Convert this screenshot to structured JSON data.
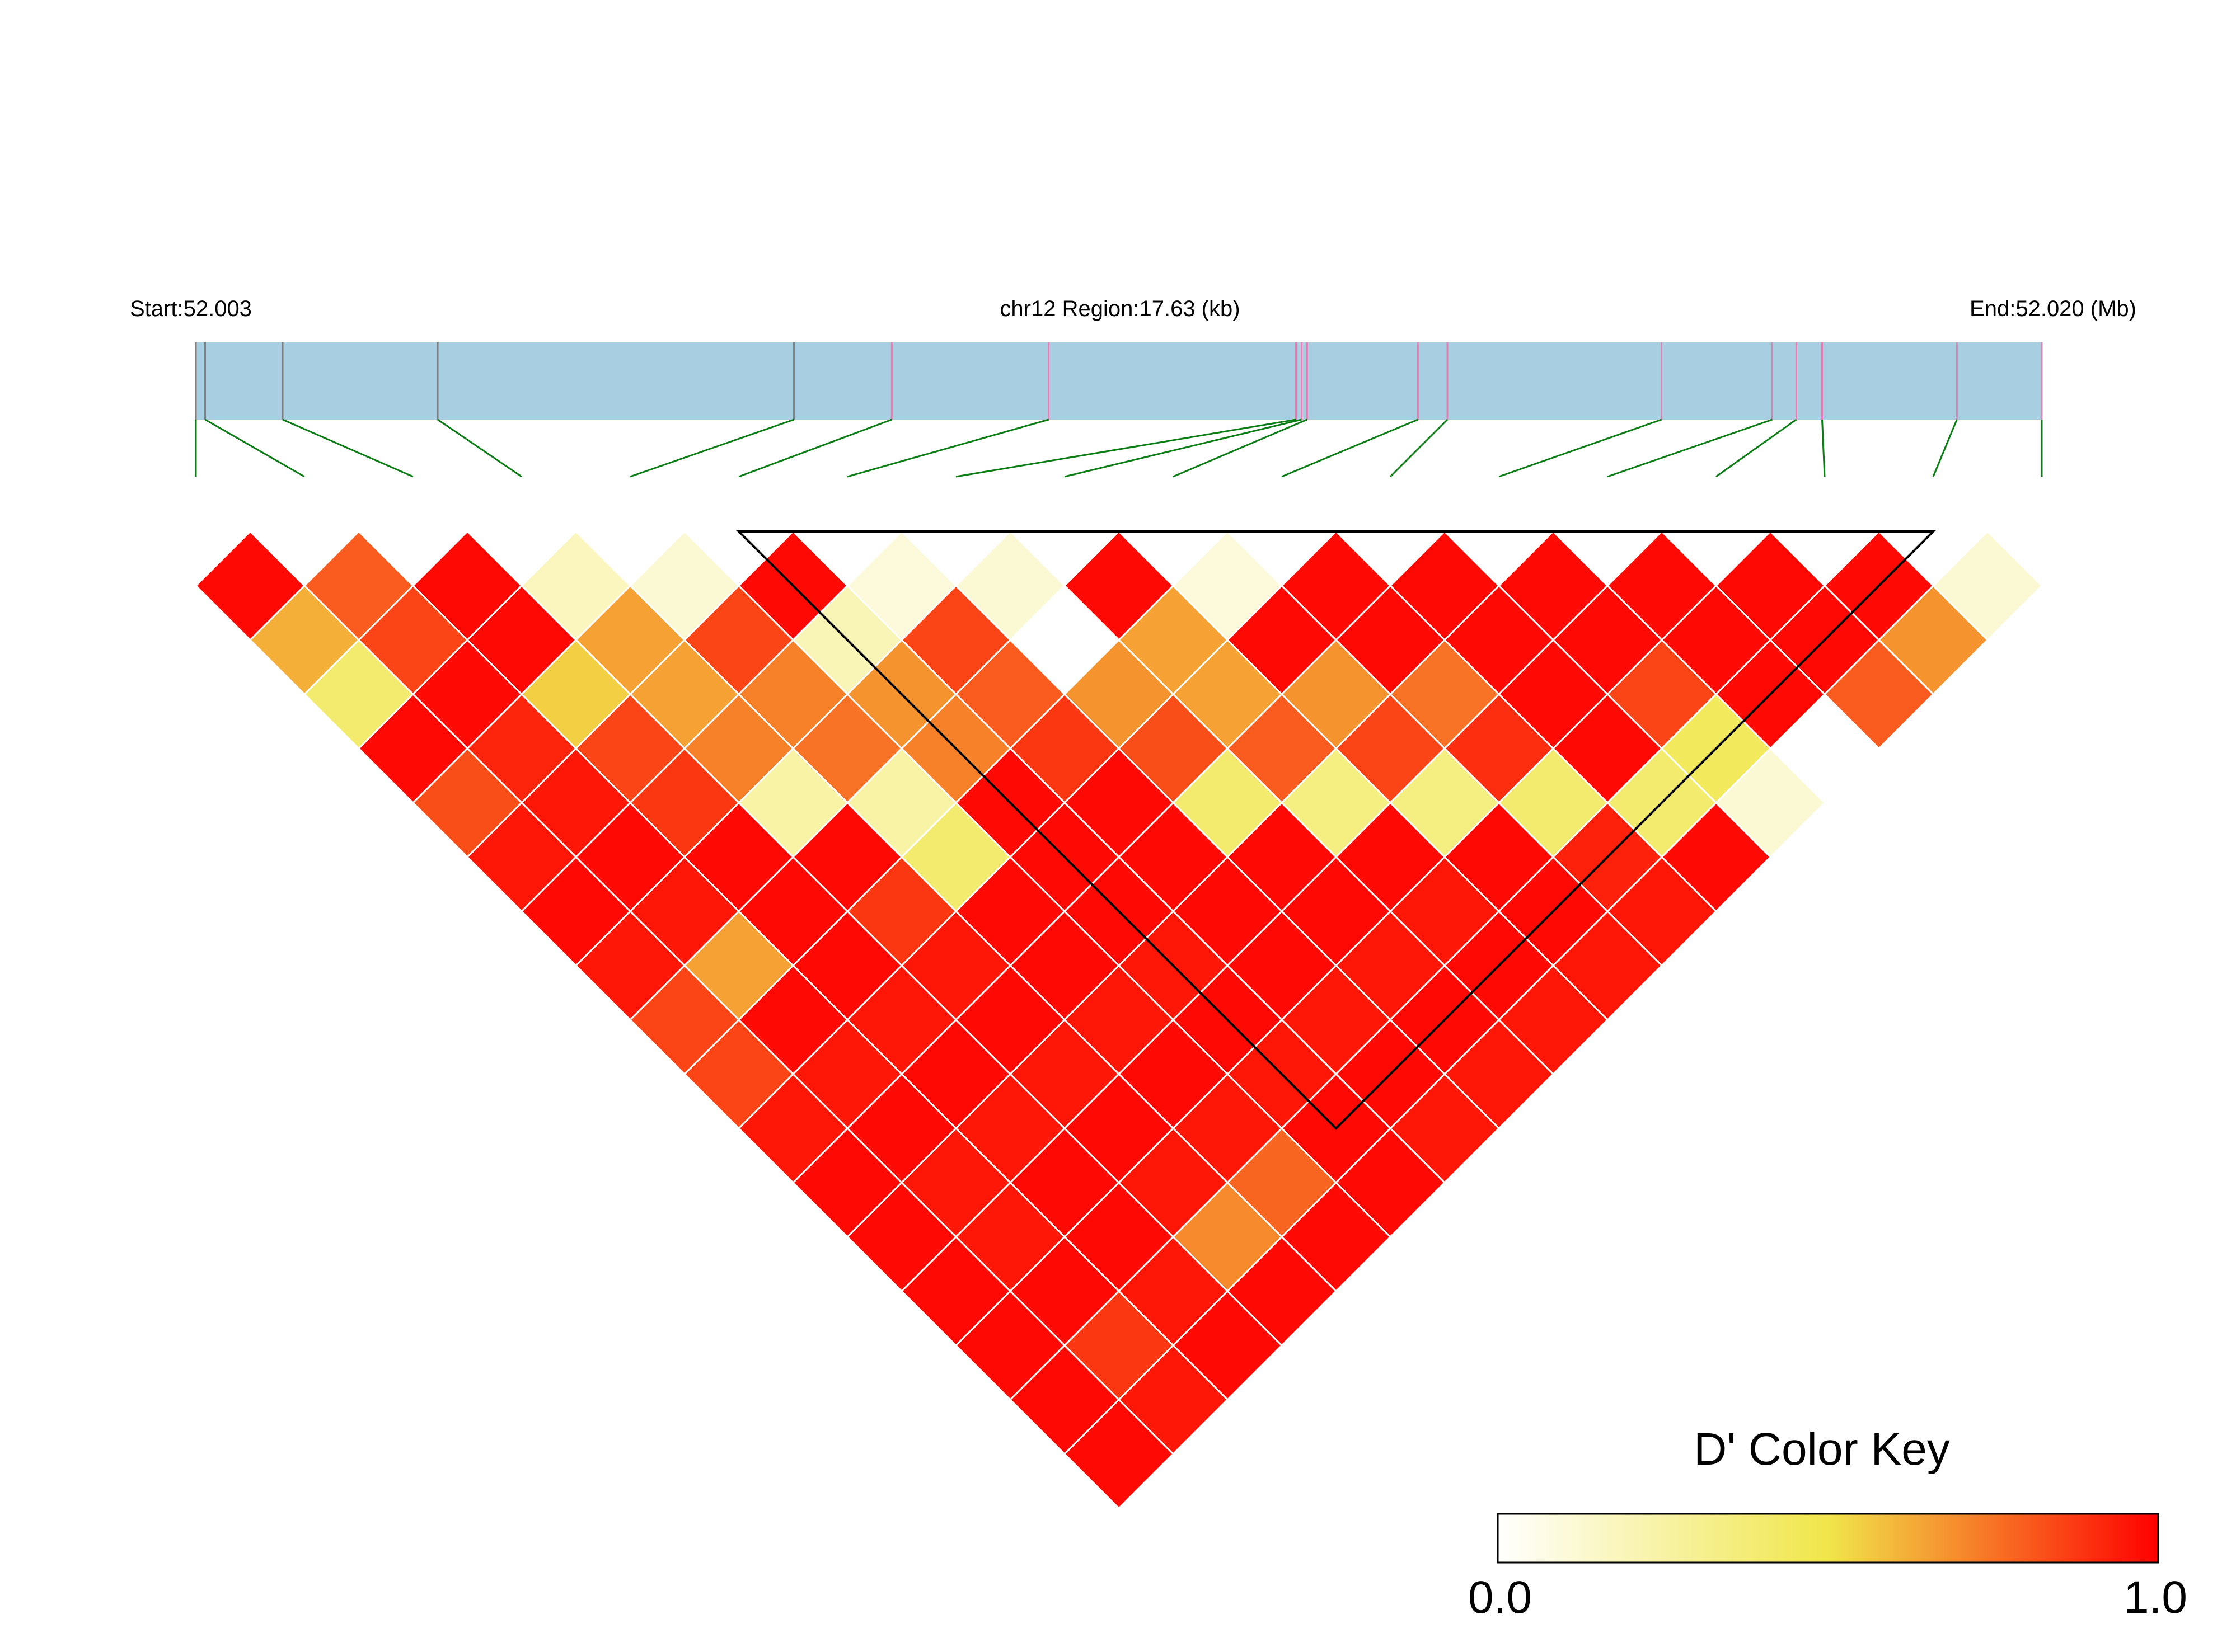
{
  "chart_data": {
    "type": "heatmap",
    "variant": "LD triangle (pairwise D')",
    "region": {
      "start_label": "Start:52.003",
      "center_label": "chr12 Region:17.63 (kb)",
      "end_label": "End:52.020 (Mb)",
      "chromosome": "chr12",
      "start_mb": 52.003,
      "end_mb": 52.02,
      "length_kb": 17.63
    },
    "snp_count": 18,
    "snp_positions_frac": [
      0.0,
      0.005,
      0.047,
      0.131,
      0.324,
      0.377,
      0.462,
      0.596,
      0.599,
      0.602,
      0.662,
      0.678,
      0.794,
      0.854,
      0.867,
      0.881,
      0.954,
      1.0
    ],
    "track_colors": [
      "#808080",
      "#808080",
      "#808080",
      "#808080",
      "#808080",
      "#e07fb4",
      "#e07fb4",
      "#e07fb4",
      "#e07fb4",
      "#e07fb4",
      "#e07fb4",
      "#e07fb4",
      "#e07fb4",
      "#e07fb4",
      "#e07fb4",
      "#e07fb4",
      "#e07fb4",
      "#e07fb4"
    ],
    "dprime": [
      [
        0.98,
        0.8,
        0.98,
        0.18,
        0.12,
        0.98,
        0.1,
        0.12,
        0.98,
        0.1,
        0.98,
        0.98,
        0.98,
        0.98,
        0.98,
        0.98,
        0.12
      ],
      [
        0.62,
        0.85,
        0.98,
        0.65,
        0.85,
        0.2,
        0.85,
        0.0,
        0.65,
        0.98,
        0.98,
        0.98,
        0.98,
        0.98,
        0.98,
        0.68
      ],
      [
        0.4,
        0.98,
        0.55,
        0.65,
        0.72,
        0.68,
        0.8,
        0.68,
        0.65,
        0.68,
        0.75,
        0.98,
        0.85,
        0.98,
        0.8
      ],
      [
        0.98,
        0.92,
        0.85,
        0.72,
        0.75,
        0.72,
        0.88,
        0.83,
        0.8,
        0.85,
        0.9,
        0.98,
        0.45
      ],
      [
        0.83,
        0.95,
        0.88,
        0.25,
        0.25,
        0.98,
        0.98,
        0.4,
        0.35,
        0.35,
        0.4,
        0.4,
        0.12
      ],
      [
        0.95,
        0.98,
        0.98,
        0.98,
        0.4,
        0.98,
        0.98,
        0.98,
        0.98,
        0.98,
        0.93,
        0.98
      ],
      [
        0.98,
        0.95,
        0.98,
        0.88,
        0.98,
        0.98,
        0.98,
        0.98,
        0.95,
        0.98,
        0.95
      ],
      [
        0.95,
        0.65,
        0.98,
        0.95,
        0.98,
        0.95,
        0.98,
        0.95,
        0.98,
        0.95
      ],
      [
        0.85,
        0.98,
        0.95,
        0.98,
        0.95,
        0.98,
        0.95,
        0.98,
        0.95
      ],
      [
        0.85,
        0.95,
        0.98,
        0.95,
        0.98,
        0.95,
        0.98,
        0.95
      ],
      [
        0.95,
        0.98,
        0.95,
        0.98,
        0.95,
        0.98,
        0.95
      ],
      [
        0.98,
        0.95,
        0.98,
        0.95,
        0.78,
        0.98
      ],
      [
        0.98,
        0.95,
        0.98,
        0.7,
        0.98
      ],
      [
        0.98,
        0.98,
        0.95,
        0.98
      ],
      [
        0.98,
        0.88,
        0.98
      ],
      [
        0.98,
        0.95
      ],
      [
        0.98
      ]
    ],
    "haplotype_block": {
      "first_snp": 6,
      "last_snp": 17
    },
    "color_key": {
      "title": "D' Color Key",
      "min_label": "0.0",
      "max_label": "1.0",
      "min": 0.0,
      "max": 1.0,
      "stops": [
        "#ffffff",
        "#f0e64a",
        "#ff0000"
      ]
    },
    "colors": {
      "track": "#a8cfe1",
      "connector": "#0a7d14",
      "cell_border": "#ffffff",
      "block_outline": "#000000"
    }
  }
}
